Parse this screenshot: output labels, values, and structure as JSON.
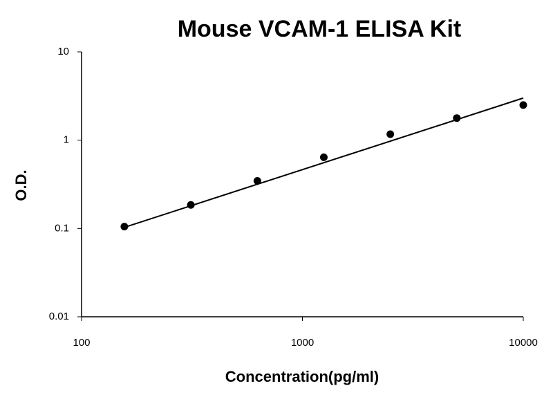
{
  "chart_data": {
    "type": "scatter",
    "title": "Mouse VCAM-1 ELISA Kit",
    "x_label": "Concentration(pg/ml)",
    "y_label": "O.D.",
    "x": [
      156.25,
      312.5,
      625,
      1250,
      2500,
      5000,
      10000
    ],
    "values": [
      0.105,
      0.185,
      0.346,
      0.64,
      1.17,
      1.78,
      2.5
    ],
    "color": "#000000",
    "trendline": {
      "x": [
        156.25,
        10000
      ],
      "y": [
        0.103,
        3.0
      ],
      "color": "#000000"
    },
    "xlim": [
      100,
      10000
    ],
    "ylim": [
      0.01,
      10
    ],
    "xticks": [
      100,
      1000,
      10000
    ],
    "yticks": [
      0.01,
      0.1,
      1,
      10
    ],
    "xscale": "log",
    "yscale": "log",
    "grid": false
  }
}
